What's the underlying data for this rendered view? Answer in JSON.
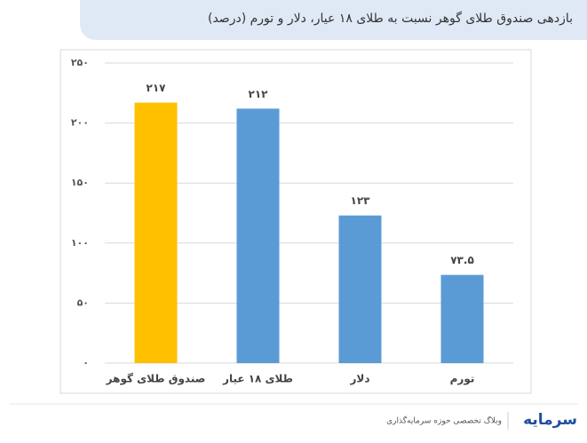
{
  "header": {
    "title": "بازدهی صندوق طلای گوهر نسبت به طلای ۱۸ عیار، دلار و تورم (درصد)"
  },
  "chart_data": {
    "type": "bar",
    "categories": [
      "صندوق طلای گوهر",
      "طلای ۱۸ عیار",
      "دلار",
      "تورم"
    ],
    "values": [
      217,
      212,
      123,
      73.5
    ],
    "value_labels": [
      "۲۱۷",
      "۲۱۲",
      "۱۲۳",
      "۷۳.۵"
    ],
    "colors": [
      "#ffc000",
      "#5b9bd5",
      "#5b9bd5",
      "#5b9bd5"
    ],
    "ylim": [
      0,
      250
    ],
    "yticks": [
      {
        "value": 0,
        "label": "۰"
      },
      {
        "value": 50,
        "label": "۵۰"
      },
      {
        "value": 100,
        "label": "۱۰۰"
      },
      {
        "value": 150,
        "label": "۱۵۰"
      },
      {
        "value": 200,
        "label": "۲۰۰"
      },
      {
        "value": 250,
        "label": "۲۵۰"
      }
    ],
    "grid": true
  },
  "footer": {
    "tagline": "وبلاگ تخصصی حوزه سرمایه‌گذاری",
    "logo": "سرمایه"
  }
}
